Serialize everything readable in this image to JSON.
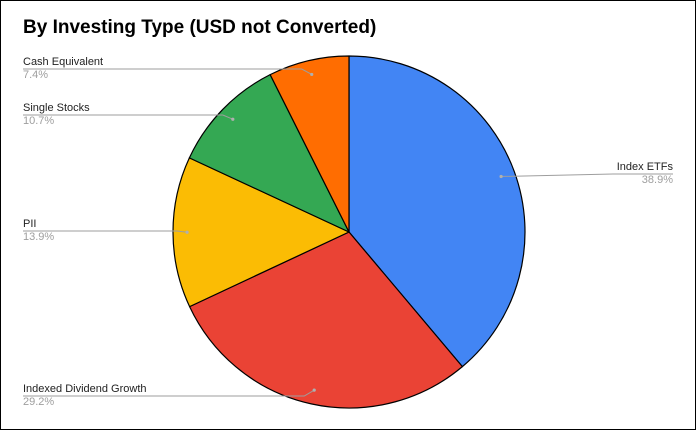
{
  "chart_data": {
    "type": "pie",
    "title": "By Investing Type (USD not Converted)",
    "slices": [
      {
        "name": "Index ETFs",
        "percent_label": "38.9%",
        "value": 38.9,
        "color": "#4285F4"
      },
      {
        "name": "Indexed Dividend Growth",
        "percent_label": "29.2%",
        "value": 29.2,
        "color": "#EA4335"
      },
      {
        "name": "PII",
        "percent_label": "13.9%",
        "value": 13.9,
        "color": "#FBBC04"
      },
      {
        "name": "Single Stocks",
        "percent_label": "10.7%",
        "value": 10.7,
        "color": "#34A853"
      },
      {
        "name": "Cash Equivalent",
        "percent_label": "7.4%",
        "value": 7.4,
        "color": "#FF6D01"
      }
    ],
    "legend": "none",
    "label_position": "outside-with-leader-lines"
  }
}
